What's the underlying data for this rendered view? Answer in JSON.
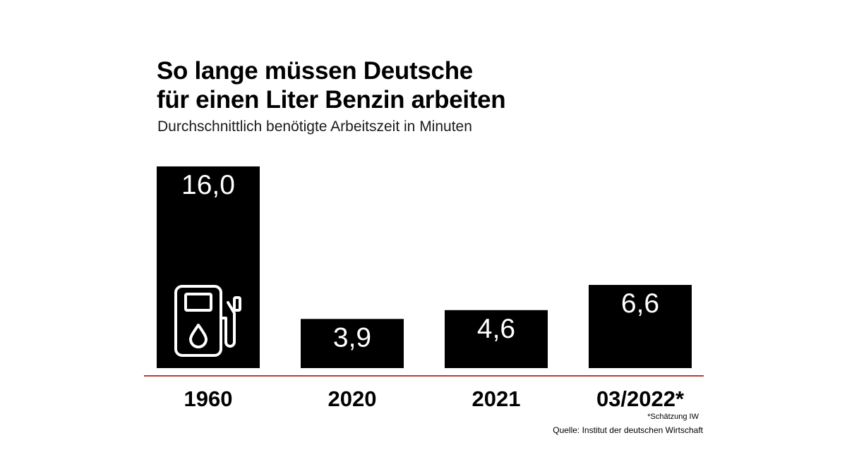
{
  "title_lines": [
    "So lange müssen Deutsche",
    "für einen Liter Benzin arbeiten"
  ],
  "subtitle": "Durchschnittlich benötigte Arbeitszeit in Minuten",
  "footnote": "*Schätzung IW",
  "source": "Quelle: Institut der deutschen Wirtschaft",
  "colors": {
    "bar": "#000000",
    "bar_label": "#ffffff",
    "baseline": "#c0392b",
    "background": "#ffffff"
  },
  "icons": [
    "fuel-pump-icon"
  ],
  "chart_data": {
    "type": "bar",
    "categories": [
      "1960",
      "2020",
      "2021",
      "03/2022*"
    ],
    "values": [
      16.0,
      3.9,
      4.6,
      6.6
    ],
    "value_labels": [
      "16,0",
      "3,9",
      "4,6",
      "6,6"
    ],
    "title": "So lange müssen Deutsche für einen Liter Benzin arbeiten",
    "subtitle": "Durchschnittlich benötigte Arbeitszeit in Minuten",
    "xlabel": "",
    "ylabel": "",
    "ylim": [
      0,
      16
    ],
    "grid": false,
    "legend": "none"
  }
}
